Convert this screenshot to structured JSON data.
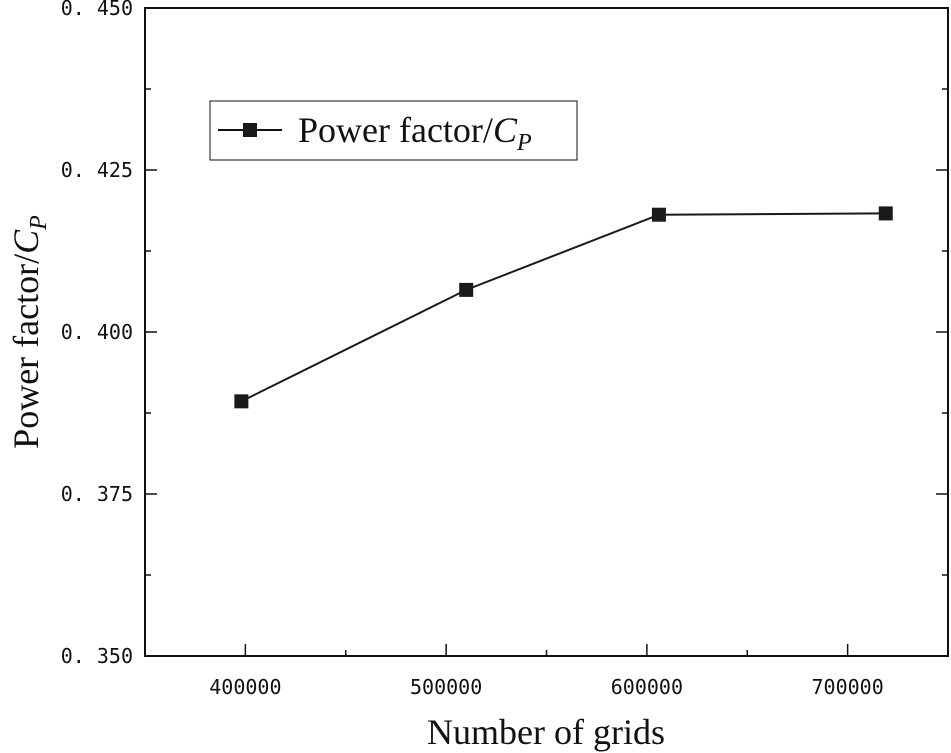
{
  "chart_data": {
    "type": "line",
    "x_label": "Number of grids",
    "y_label_main": "Power factor/",
    "y_label_symbol": "C",
    "y_label_subscript": "P",
    "x_range": [
      350000,
      750000
    ],
    "y_range": [
      0.35,
      0.45
    ],
    "x_ticks": [
      400000,
      500000,
      600000,
      700000
    ],
    "x_tick_labels": [
      "400000",
      "500000",
      "600000",
      "700000"
    ],
    "y_ticks": [
      0.35,
      0.375,
      0.4,
      0.425,
      0.45
    ],
    "y_tick_labels": [
      "0. 350",
      "0. 375",
      "0. 400",
      "0. 425",
      "0. 450"
    ],
    "grid": false,
    "legend_position": "top-left",
    "series": [
      {
        "name_main": "Power factor/",
        "name_symbol": "C",
        "name_subscript": "P",
        "marker": "square",
        "color": "#1a1a1a",
        "x": [
          398000,
          510000,
          606000,
          719000
        ],
        "y": [
          0.3893,
          0.4065,
          0.4181,
          0.4183
        ]
      }
    ]
  }
}
